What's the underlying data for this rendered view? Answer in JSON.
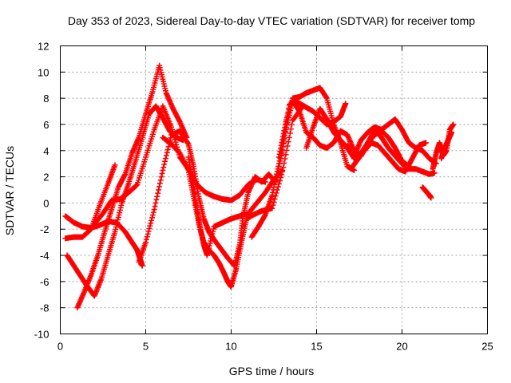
{
  "chart_data": {
    "type": "scatter",
    "title": "Day 353 of 2023, Sidereal Day-to-day VTEC variation (SDTVAR) for receiver tomp",
    "xlabel": "GPS time / hours",
    "ylabel": "SDTVAR / TECUs",
    "xlim": [
      0,
      25
    ],
    "ylim": [
      -10,
      12
    ],
    "xticks": [
      0,
      5,
      10,
      15,
      20,
      25
    ],
    "yticks": [
      -10,
      -8,
      -6,
      -4,
      -2,
      0,
      2,
      4,
      6,
      8,
      10,
      12
    ],
    "grid": true,
    "marker": "+",
    "color": "#ff0000",
    "series": [
      {
        "x": [
          0.4,
          0.8,
          1.2,
          1.6,
          2.0,
          2.4,
          2.8,
          3.2,
          3.6,
          4.0,
          4.4,
          4.8,
          5.2,
          5.6,
          6.0,
          6.4,
          6.8,
          7.2
        ],
        "y": [
          -4.0,
          -4.8,
          -5.6,
          -6.4,
          -7.1,
          -5.8,
          -4.0,
          -2.2,
          0.0,
          1.5,
          3.2,
          5.0,
          6.8,
          7.4,
          6.5,
          5.5,
          5.0,
          4.8
        ]
      },
      {
        "x": [
          1.0,
          1.4,
          1.8,
          2.2,
          2.6,
          3.0,
          3.4,
          3.8,
          4.2,
          4.6,
          5.0,
          5.4,
          5.8,
          6.2,
          6.6,
          7.0,
          7.4
        ],
        "y": [
          -8.0,
          -6.8,
          -5.5,
          -4.0,
          -2.2,
          -0.5,
          1.2,
          2.2,
          3.8,
          5.0,
          6.8,
          8.5,
          10.5,
          8.4,
          7.2,
          6.2,
          5.0
        ]
      },
      {
        "x": [
          0.3,
          0.8,
          1.3,
          1.8,
          2.3,
          2.8,
          3.3,
          3.8,
          4.2,
          4.5,
          4.7,
          4.8
        ],
        "y": [
          -1.0,
          -1.5,
          -1.8,
          -1.9,
          -1.7,
          -1.4,
          -1.5,
          -2.2,
          -3.0,
          -3.6,
          -4.4,
          -4.8
        ]
      },
      {
        "x": [
          0.3,
          0.8,
          1.3,
          1.8,
          2.3,
          2.8,
          3.2
        ],
        "y": [
          -2.7,
          -2.6,
          -2.6,
          -2.0,
          -0.2,
          1.5,
          2.9
        ]
      },
      {
        "x": [
          2.0,
          2.5,
          3.0,
          3.5,
          4.0,
          4.5,
          5.0,
          5.5,
          6.0,
          6.5,
          7.0,
          7.5,
          8.0,
          8.5,
          9.0,
          9.5,
          10.0,
          10.5,
          11.0,
          11.5,
          12.0
        ],
        "y": [
          -1.6,
          -0.8,
          0.2,
          0.3,
          0.8,
          1.4,
          3.5,
          5.6,
          7.4,
          5.8,
          3.5,
          2.6,
          1.4,
          0.8,
          0.5,
          0.3,
          0.2,
          0.6,
          1.4,
          1.8,
          1.6
        ]
      },
      {
        "x": [
          4.6,
          5.0,
          5.5,
          6.0,
          6.5,
          7.0,
          7.5,
          7.8,
          8.1,
          8.4,
          8.7,
          9.0,
          9.4,
          9.8,
          10.2,
          10.5,
          10.7,
          11.0,
          11.4,
          11.8,
          12.2,
          12.6,
          13.0,
          13.4,
          13.8
        ],
        "y": [
          -4.5,
          -3.0,
          -0.5,
          2.5,
          5.2,
          5.5,
          4.5,
          2.8,
          0.5,
          -1.2,
          -2.2,
          -2.8,
          -3.5,
          -4.2,
          -4.8,
          -3.2,
          -1.0,
          0.8,
          2.0,
          1.6,
          2.2,
          1.6,
          4.0,
          7.5,
          7.8
        ]
      },
      {
        "x": [
          6.0,
          6.5,
          7.0,
          7.5,
          7.8,
          8.1,
          8.4,
          8.7,
          9.0,
          9.3,
          9.6,
          9.8,
          10.0,
          10.3,
          10.6,
          10.9,
          11.3,
          11.8,
          12.4,
          13.0,
          13.6,
          14.2
        ],
        "y": [
          5.0,
          4.5,
          3.8,
          2.5,
          0.5,
          -1.5,
          -3.0,
          -3.6,
          -4.0,
          -4.6,
          -5.4,
          -6.0,
          -6.4,
          -5.0,
          -3.0,
          -1.2,
          -0.9,
          -0.6,
          -0.4,
          2.4,
          6.3,
          7.4
        ]
      },
      {
        "x": [
          7.5,
          7.8,
          8.0,
          8.2,
          8.4,
          8.6,
          9.0,
          9.5,
          10.0,
          10.5,
          11.0,
          11.5,
          12.0,
          12.5,
          13.0
        ],
        "y": [
          3.5,
          1.2,
          -0.5,
          -2.0,
          -3.2,
          -4.0,
          -1.8,
          -1.5,
          -1.2,
          -1.0,
          -0.8,
          0.0,
          0.8,
          1.8,
          2.5
        ]
      },
      {
        "x": [
          11.2,
          11.6,
          12.0,
          12.4,
          12.8,
          13.2,
          13.6,
          14.0,
          14.4,
          14.8,
          15.2,
          15.6,
          16.0,
          16.4,
          16.7
        ],
        "y": [
          -2.6,
          -1.8,
          -0.9,
          0.6,
          3.0,
          5.6,
          7.8,
          7.6,
          7.3,
          7.0,
          6.5,
          6.0,
          6.2,
          6.6,
          7.6
        ]
      },
      {
        "x": [
          12.8,
          13.2,
          13.6,
          14.0,
          14.4,
          14.8,
          15.2,
          15.6,
          16.0,
          16.4,
          16.8,
          17.2
        ],
        "y": [
          3.5,
          6.2,
          8.0,
          8.1,
          8.4,
          8.6,
          8.8,
          8.0,
          6.0,
          4.6,
          2.8,
          2.5
        ]
      },
      {
        "x": [
          13.6,
          14.0,
          14.4,
          14.8,
          15.2,
          15.6,
          16.0,
          16.4,
          16.8,
          17.2,
          17.6,
          18.0,
          18.4,
          18.8,
          19.2,
          19.6,
          20.0,
          20.4,
          20.8,
          21.2,
          21.6,
          21.9
        ],
        "y": [
          7.8,
          7.0,
          5.4,
          5.0,
          4.4,
          4.2,
          4.6,
          5.5,
          5.2,
          4.0,
          3.6,
          4.6,
          5.6,
          5.0,
          4.2,
          3.6,
          3.0,
          2.6,
          2.6,
          2.4,
          2.2,
          2.3
        ]
      },
      {
        "x": [
          14.4,
          14.8,
          15.2,
          15.6,
          16.0,
          16.4,
          16.8,
          17.2,
          17.6,
          18.0,
          18.4,
          18.8,
          19.2,
          19.6,
          20.0,
          20.4
        ],
        "y": [
          4.2,
          5.8,
          7.2,
          6.4,
          5.4,
          4.8,
          4.2,
          3.4,
          3.8,
          4.6,
          5.2,
          5.5,
          5.0,
          4.2,
          3.2,
          2.8
        ]
      },
      {
        "x": [
          16.8,
          17.2,
          17.6,
          18.0,
          18.4,
          18.8,
          19.2,
          19.6,
          20.0,
          20.4,
          20.8,
          21.2,
          21.6,
          22.0
        ],
        "y": [
          4.4,
          3.6,
          4.8,
          5.4,
          5.8,
          5.6,
          6.0,
          6.4,
          5.6,
          4.6,
          4.2,
          4.0,
          3.4,
          3.0
        ]
      },
      {
        "x": [
          17.0,
          17.4,
          17.8,
          18.2,
          18.6,
          19.0,
          19.4,
          19.8,
          20.2,
          20.6,
          21.0,
          21.4
        ],
        "y": [
          2.6,
          3.3,
          4.0,
          4.6,
          4.4,
          3.8,
          3.2,
          2.6,
          2.4,
          3.4,
          4.4,
          4.6
        ]
      },
      {
        "x": [
          21.2,
          21.4,
          21.6,
          21.7
        ],
        "y": [
          1.2,
          0.9,
          0.6,
          0.4
        ]
      },
      {
        "x": [
          21.8,
          22.0,
          22.2,
          22.4,
          22.6,
          22.8,
          23.0
        ],
        "y": [
          2.6,
          3.8,
          4.6,
          3.6,
          4.0,
          5.6,
          6.0
        ]
      },
      {
        "x": [
          22.3,
          22.5,
          22.7,
          22.9
        ],
        "y": [
          3.4,
          4.2,
          4.8,
          5.4
        ]
      }
    ]
  }
}
